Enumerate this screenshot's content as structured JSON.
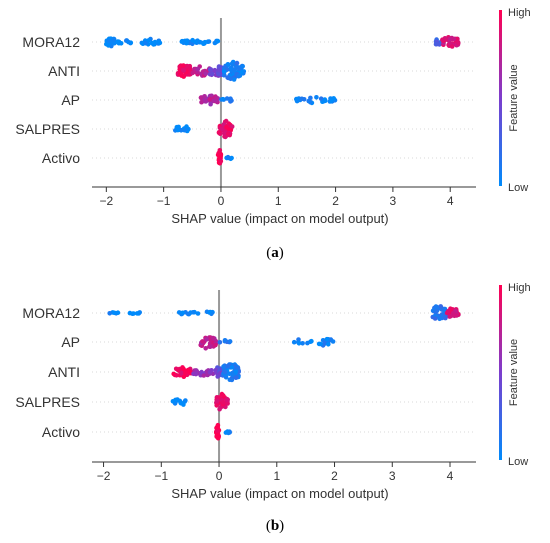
{
  "chart_data": [
    {
      "type": "scatter",
      "caption": "(a)",
      "xlabel": "SHAP value (impact on model output)",
      "xlim": [
        -2.25,
        4.45
      ],
      "xticks": [
        -2,
        -1,
        0,
        1,
        2,
        3,
        4
      ],
      "colorbar": {
        "label": "Feature value",
        "high": "High",
        "low": "Low",
        "color_high": "#ff0052",
        "color_low": "#008bfb"
      },
      "features": [
        {
          "name": "MORA12",
          "clusters": [
            {
              "from": -2.0,
              "to": -1.85,
              "value": 0.0,
              "n": 28,
              "spread": 5
            },
            {
              "from": -1.8,
              "to": -1.55,
              "value": 0.0,
              "n": 10,
              "spread": 2
            },
            {
              "from": -1.4,
              "to": -1.05,
              "value": 0.0,
              "n": 16,
              "spread": 3
            },
            {
              "from": -0.7,
              "to": -0.05,
              "value": 0.0,
              "n": 30,
              "spread": 2
            },
            {
              "from": 3.7,
              "to": 3.85,
              "value": 0.25,
              "n": 12,
              "spread": 3
            },
            {
              "from": 3.85,
              "to": 4.15,
              "value": 0.85,
              "n": 40,
              "spread": 5
            }
          ]
        },
        {
          "name": "ANTI",
          "clusters": [
            {
              "from": -0.75,
              "to": -0.5,
              "value": 0.95,
              "n": 40,
              "spread": 7
            },
            {
              "from": -0.5,
              "to": -0.2,
              "value": 0.75,
              "n": 25,
              "spread": 5
            },
            {
              "from": -0.2,
              "to": 0.05,
              "value": 0.45,
              "n": 25,
              "spread": 6
            },
            {
              "from": 0.05,
              "to": 0.4,
              "value": 0.1,
              "n": 60,
              "spread": 9
            }
          ]
        },
        {
          "name": "AP",
          "clusters": [
            {
              "from": -0.35,
              "to": -0.05,
              "value": 0.7,
              "n": 28,
              "spread": 5
            },
            {
              "from": 0.0,
              "to": 0.2,
              "value": 0.1,
              "n": 8,
              "spread": 2
            },
            {
              "from": 1.3,
              "to": 2.0,
              "value": 0.05,
              "n": 30,
              "spread": 3
            }
          ]
        },
        {
          "name": "SALPRES",
          "clusters": [
            {
              "from": -0.8,
              "to": -0.5,
              "value": 0.0,
              "n": 14,
              "spread": 3
            },
            {
              "from": -0.05,
              "to": 0.2,
              "value": 0.9,
              "n": 40,
              "spread": 8
            }
          ]
        },
        {
          "name": "Activo",
          "clusters": [
            {
              "from": -0.05,
              "to": 0.0,
              "value": 1.0,
              "n": 22,
              "spread": 8
            },
            {
              "from": 0.1,
              "to": 0.2,
              "value": 0.0,
              "n": 6,
              "spread": 1
            }
          ]
        }
      ]
    },
    {
      "type": "scatter",
      "caption": "(b)",
      "xlabel": "SHAP value (impact on model output)",
      "xlim": [
        -2.2,
        4.45
      ],
      "xticks": [
        -2,
        -1,
        0,
        1,
        2,
        3,
        4
      ],
      "colorbar": {
        "label": "Feature value",
        "high": "High",
        "low": "Low",
        "color_high": "#ff0052",
        "color_low": "#008bfb"
      },
      "features": [
        {
          "name": "MORA12",
          "clusters": [
            {
              "from": -1.9,
              "to": -1.75,
              "value": 0.0,
              "n": 5,
              "spread": 1
            },
            {
              "from": -1.55,
              "to": -1.35,
              "value": 0.0,
              "n": 6,
              "spread": 1
            },
            {
              "from": -0.7,
              "to": -0.1,
              "value": 0.0,
              "n": 16,
              "spread": 2
            },
            {
              "from": 3.7,
              "to": 3.95,
              "value": 0.15,
              "n": 40,
              "spread": 8
            },
            {
              "from": 3.95,
              "to": 4.15,
              "value": 0.85,
              "n": 25,
              "spread": 5
            }
          ]
        },
        {
          "name": "AP",
          "clusters": [
            {
              "from": -0.35,
              "to": -0.05,
              "value": 0.75,
              "n": 32,
              "spread": 7
            },
            {
              "from": 0.0,
              "to": 0.2,
              "value": 0.1,
              "n": 6,
              "spread": 2
            },
            {
              "from": 1.3,
              "to": 2.0,
              "value": 0.05,
              "n": 24,
              "spread": 4
            }
          ]
        },
        {
          "name": "ANTI",
          "clusters": [
            {
              "from": -0.8,
              "to": -0.45,
              "value": 0.95,
              "n": 30,
              "spread": 5
            },
            {
              "from": -0.45,
              "to": -0.1,
              "value": 0.6,
              "n": 22,
              "spread": 4
            },
            {
              "from": -0.1,
              "to": 0.05,
              "value": 0.4,
              "n": 15,
              "spread": 5
            },
            {
              "from": 0.05,
              "to": 0.35,
              "value": 0.1,
              "n": 55,
              "spread": 9
            }
          ]
        },
        {
          "name": "SALPRES",
          "clusters": [
            {
              "from": -0.8,
              "to": -0.55,
              "value": 0.0,
              "n": 14,
              "spread": 3
            },
            {
              "from": -0.05,
              "to": 0.15,
              "value": 0.9,
              "n": 38,
              "spread": 8
            }
          ]
        },
        {
          "name": "Activo",
          "clusters": [
            {
              "from": -0.05,
              "to": 0.0,
              "value": 1.0,
              "n": 22,
              "spread": 8
            },
            {
              "from": 0.1,
              "to": 0.2,
              "value": 0.0,
              "n": 5,
              "spread": 1
            }
          ]
        }
      ]
    }
  ]
}
